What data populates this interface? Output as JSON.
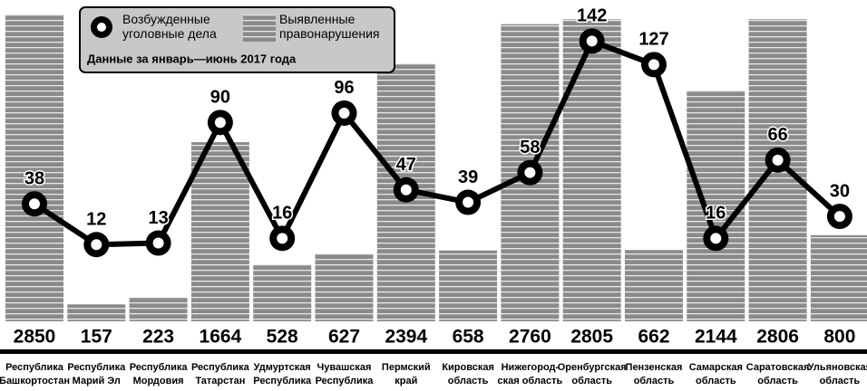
{
  "chart_data": {
    "type": "bar_line",
    "subtitle": "Данные за январь—июнь 2017 года",
    "categories": [
      "Республика\nБашкортостан",
      "Республика\nМарий Эл",
      "Республика\nМордовия",
      "Республика\nТатарстан",
      "Удмуртская\nРеспублика",
      "Чувашская\nРеспублика",
      "Пермский\nкрай",
      "Кировская\nобласть",
      "Нижегород-\nская область",
      "Оренбургская\nобласть",
      "Пензенская\nобласть",
      "Самарская\nобласть",
      "Саратовская\nобласть",
      "Ульяновская\nобласть"
    ],
    "series": [
      {
        "name": "Выявленные\nправонарушения",
        "color": "#8a8a8a",
        "type": "bar",
        "values": [
          2850,
          157,
          223,
          1664,
          528,
          627,
          2394,
          658,
          2760,
          2805,
          662,
          2144,
          2806,
          800
        ]
      },
      {
        "name": "Возбужденные\nуголовные дела",
        "color": "#000000",
        "type": "line",
        "axis": "y2",
        "values": [
          38,
          12,
          13,
          90,
          16,
          96,
          47,
          39,
          58,
          142,
          127,
          16,
          66,
          30
        ]
      }
    ],
    "ylim": [
      0,
      2850
    ],
    "y2lim": [
      -37,
      159
    ]
  }
}
